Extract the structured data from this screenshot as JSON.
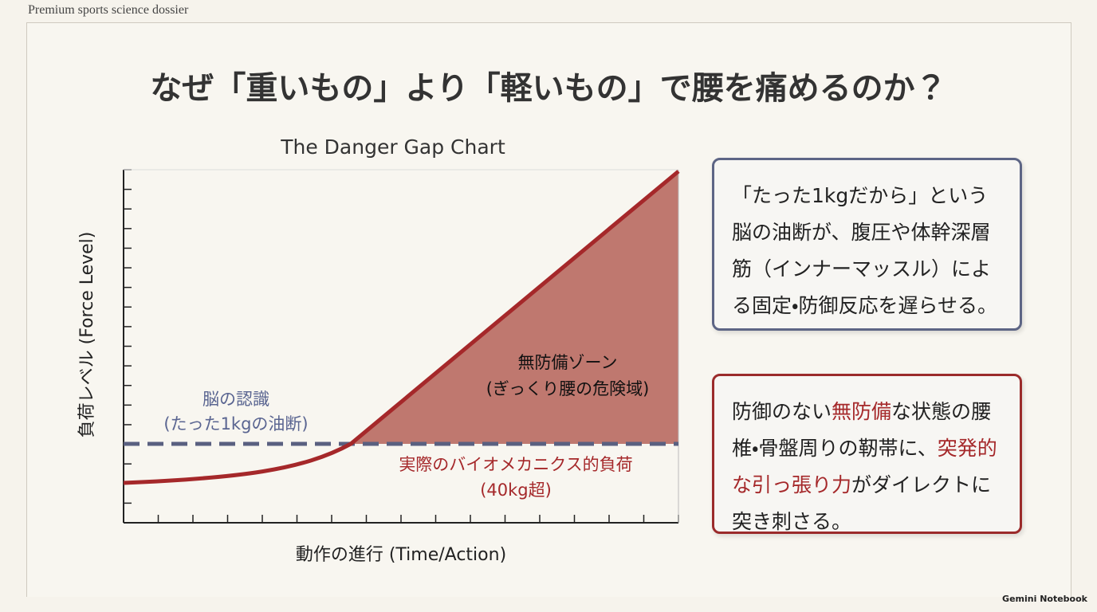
{
  "header": {
    "label": "Premium sports science dossier"
  },
  "title": "なぜ「重いもの」より「軽いもの」で腰を痛めるのか？",
  "chart": {
    "title": "The Danger Gap Chart",
    "y_label": "負荷レベル (Force Level)",
    "x_label": "動作の進行 (Time/Action)",
    "perceived": [
      "脳の認識",
      "(たった1kgの油断)"
    ],
    "zone": [
      "無防備ゾーン",
      "(ぎっくり腰の危険域)"
    ],
    "actual": [
      "実際のバイオメカニクス的負荷",
      "(40kg超)"
    ]
  },
  "boxes": [
    {
      "segments": [
        {
          "text": "「たった1kgだから」という脳の油断が、腹圧や体幹深層筋（インナーマッスル）による固定・防御反応を遅らせる。",
          "emphasis": false
        }
      ]
    },
    {
      "segments": [
        {
          "text": "防御のない",
          "emphasis": false
        },
        {
          "text": "無防備",
          "emphasis": true
        },
        {
          "text": "な状態の腰椎・骨盤周りの靭帯に、",
          "emphasis": false
        },
        {
          "text": "突発的な引っ張り力",
          "emphasis": true
        },
        {
          "text": "がダイレクトに突き刺さる。",
          "emphasis": false
        }
      ]
    }
  ],
  "footer": "Gemini Notebook"
}
